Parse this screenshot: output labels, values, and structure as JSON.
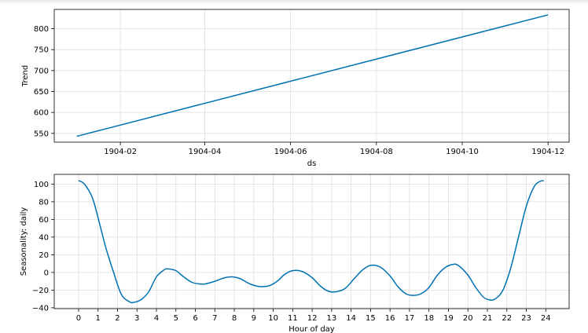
{
  "chart_data": [
    {
      "type": "line",
      "xlabel": "ds",
      "ylabel": "Trend",
      "x_ticks": [
        "1904-02",
        "1904-04",
        "1904-06",
        "1904-08",
        "1904-10",
        "1904-12"
      ],
      "y_ticks": [
        550,
        600,
        650,
        700,
        750,
        800
      ],
      "xlim": [
        "1903-12-16",
        "1904-12-16"
      ],
      "ylim": [
        529,
        846
      ],
      "grid": true,
      "color": "#0072b2",
      "series": [
        {
          "x": [
            "1904-01-01",
            "1904-12-01"
          ],
          "y": [
            543,
            833
          ]
        }
      ]
    },
    {
      "type": "line",
      "xlabel": "Hour of day",
      "ylabel": "Seasonality: daily",
      "x_ticks": [
        "0",
        "1",
        "2",
        "3",
        "4",
        "5",
        "6",
        "7",
        "8",
        "9",
        "10",
        "11",
        "12",
        "13",
        "14",
        "15",
        "16",
        "17",
        "18",
        "19",
        "20",
        "21",
        "22",
        "23",
        "24"
      ],
      "y_ticks": [
        "100",
        "80",
        "60",
        "40",
        "20",
        "0",
        "−20",
        "−40"
      ],
      "xlim": [
        -1.25,
        25.2
      ],
      "ylim": [
        -41,
        111
      ],
      "grid": true,
      "color": "#0072b2",
      "series": [
        {
          "x": [
            0,
            0.3,
            0.7,
            1.0,
            1.4,
            1.8,
            2.2,
            2.6,
            2.8,
            3.2,
            3.6,
            4.0,
            4.4,
            4.6,
            5.0,
            5.4,
            5.8,
            6.2,
            6.5,
            7.0,
            7.5,
            7.9,
            8.3,
            8.8,
            9.3,
            9.8,
            10.2,
            10.6,
            11.0,
            11.5,
            12.0,
            12.4,
            12.8,
            13.2,
            13.7,
            14.2,
            14.6,
            15.0,
            15.5,
            16.0,
            16.4,
            16.8,
            17.2,
            17.6,
            18.0,
            18.4,
            18.8,
            19.2,
            19.5,
            20.0,
            20.4,
            20.8,
            21.1,
            21.4,
            21.8,
            22.2,
            22.6,
            23.0,
            23.4,
            23.7,
            23.9
          ],
          "y": [
            104,
            100,
            85,
            62,
            28,
            0,
            -25,
            -33,
            -34,
            -31,
            -22,
            -5,
            3,
            4,
            2,
            -5,
            -11,
            -13,
            -13,
            -10,
            -6,
            -5,
            -7,
            -13,
            -16,
            -15,
            -10,
            -2,
            2,
            1,
            -6,
            -15,
            -21,
            -22,
            -18,
            -6,
            3,
            8,
            6,
            -4,
            -16,
            -24,
            -26,
            -24,
            -17,
            -4,
            5,
            9,
            8,
            -3,
            -17,
            -28,
            -31,
            -30,
            -20,
            5,
            40,
            75,
            97,
            103,
            104
          ]
        }
      ]
    }
  ]
}
